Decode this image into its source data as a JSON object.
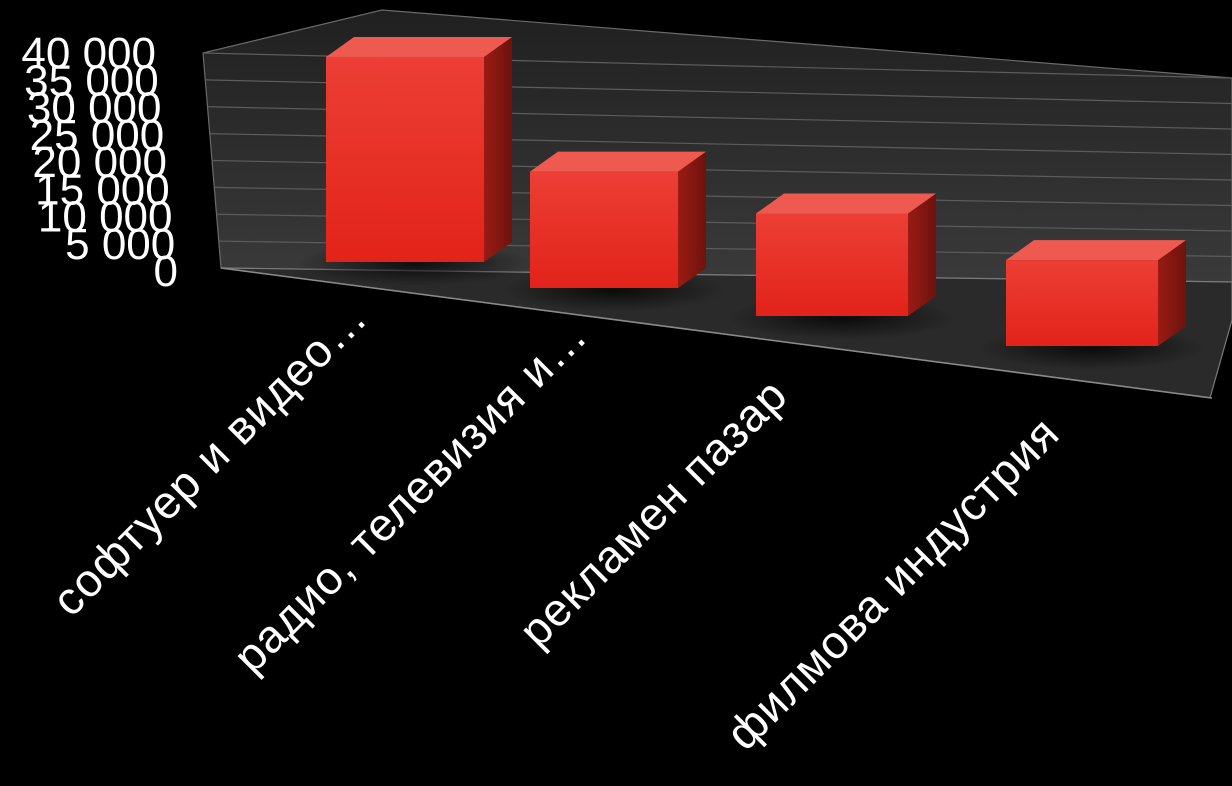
{
  "chart_data": {
    "type": "bar",
    "style": "3d-column",
    "categories": [
      "софтуер и видео…",
      "радио, телевизия и…",
      "рекламен пазар",
      "филмова индустрия"
    ],
    "series": [
      {
        "values": [
          37000,
          21000,
          18500,
          15500
        ]
      }
    ],
    "yticks": [
      "0",
      "5 000",
      "10 000",
      "15 000",
      "20 000",
      "25 000",
      "30 000",
      "35 000",
      "40 000"
    ],
    "ylim": [
      0,
      40000
    ],
    "grid": true,
    "legend": "none",
    "colors": {
      "bar_front": "#e8281e",
      "bar_top": "#ef5a50",
      "bar_side": "#8f1812",
      "background": "#000000",
      "floor": "#2b2b2b"
    }
  }
}
